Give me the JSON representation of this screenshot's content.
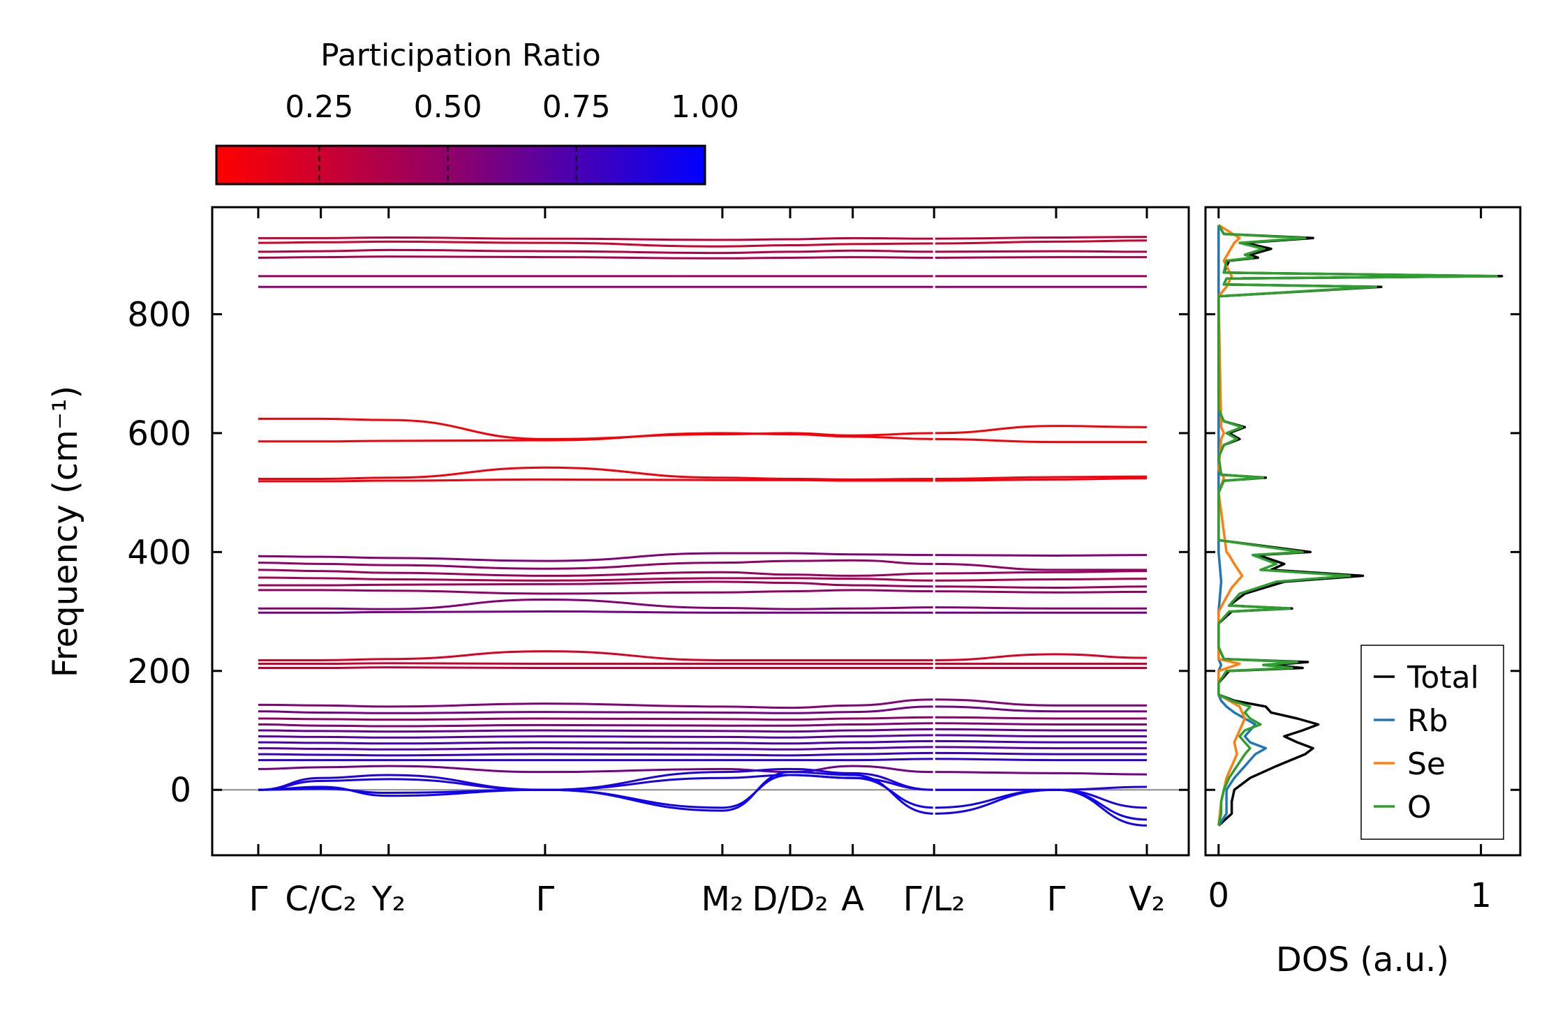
{
  "colors": {
    "cmap_low": "#ff0000",
    "cmap_mid": "#8a006e",
    "cmap_high": "#0000ff",
    "axes": "#000000",
    "zero_line": "#888888",
    "total": "#000000",
    "rb": "#1f77b4",
    "se": "#ff7f0e",
    "o": "#2ca02c"
  },
  "colorbar": {
    "label": "Participation Ratio",
    "range": [
      0.05,
      1.0
    ],
    "ticks": [
      "0.25",
      "0.50",
      "0.75",
      "1.00"
    ],
    "tick_values": [
      0.25,
      0.5,
      0.75,
      1.0
    ]
  },
  "chart_data": [
    {
      "type": "line",
      "title": "",
      "xlabel": "",
      "ylabel": "Frequency (cm⁻¹)",
      "ylim": [
        -110,
        980
      ],
      "ytick_labels": [
        "0",
        "200",
        "400",
        "600",
        "800"
      ],
      "ytick_values": [
        0,
        200,
        400,
        600,
        800
      ],
      "zero_line": 0,
      "kpath_labels": [
        "Γ",
        "C/C₂",
        "Y₂",
        "Γ",
        "M₂",
        "D/D₂",
        "A",
        "Γ/L₂",
        "Γ",
        "V₂"
      ],
      "kpath_positions": [
        0,
        0.6,
        1.25,
        2.75,
        4.45,
        5.1,
        5.7,
        6.48,
        7.65,
        8.52
      ],
      "kpath_segment_breaks": [
        6.48
      ],
      "bands": [
        {
          "pr": 0.3,
          "freqs": [
            928,
            928,
            929,
            927,
            925,
            926,
            928,
            927,
            929,
            930
          ]
        },
        {
          "pr": 0.25,
          "freqs": [
            920,
            921,
            922,
            920,
            914,
            916,
            918,
            919,
            922,
            924
          ]
        },
        {
          "pr": 0.35,
          "freqs": [
            905,
            906,
            908,
            906,
            903,
            905,
            907,
            905,
            906,
            905
          ]
        },
        {
          "pr": 0.4,
          "freqs": [
            895,
            896,
            897,
            896,
            894,
            895,
            896,
            895,
            896,
            896
          ]
        },
        {
          "pr": 0.45,
          "freqs": [
            864,
            864,
            864,
            864,
            864,
            864,
            864,
            864,
            864,
            864
          ]
        },
        {
          "pr": 0.5,
          "freqs": [
            846,
            846,
            846,
            846,
            846,
            846,
            846,
            846,
            846,
            846
          ]
        },
        {
          "pr": 0.08,
          "freqs": [
            624,
            624,
            622,
            590,
            598,
            600,
            596,
            600,
            612,
            610
          ]
        },
        {
          "pr": 0.08,
          "freqs": [
            586,
            586,
            587,
            588,
            600,
            598,
            594,
            590,
            585,
            585
          ]
        },
        {
          "pr": 0.1,
          "freqs": [
            523,
            523,
            525,
            542,
            525,
            523,
            522,
            523,
            526,
            527
          ]
        },
        {
          "pr": 0.1,
          "freqs": [
            519,
            519,
            520,
            522,
            521,
            521,
            520,
            520,
            522,
            524
          ]
        },
        {
          "pr": 0.55,
          "freqs": [
            393,
            392,
            390,
            385,
            398,
            398,
            396,
            395,
            394,
            395
          ]
        },
        {
          "pr": 0.5,
          "freqs": [
            382,
            380,
            378,
            372,
            382,
            385,
            386,
            380,
            370,
            370
          ]
        },
        {
          "pr": 0.45,
          "freqs": [
            370,
            368,
            365,
            360,
            366,
            362,
            360,
            364,
            366,
            368
          ]
        },
        {
          "pr": 0.4,
          "freqs": [
            357,
            356,
            354,
            352,
            356,
            356,
            355,
            352,
            354,
            355
          ]
        },
        {
          "pr": 0.45,
          "freqs": [
            344,
            344,
            345,
            346,
            350,
            348,
            344,
            342,
            340,
            342
          ]
        },
        {
          "pr": 0.5,
          "freqs": [
            336,
            336,
            335,
            330,
            332,
            334,
            336,
            334,
            332,
            333
          ]
        },
        {
          "pr": 0.55,
          "freqs": [
            305,
            305,
            304,
            320,
            306,
            304,
            305,
            307,
            305,
            305
          ]
        },
        {
          "pr": 0.6,
          "freqs": [
            298,
            298,
            299,
            300,
            298,
            298,
            298,
            298,
            298,
            298
          ]
        },
        {
          "pr": 0.2,
          "freqs": [
            218,
            218,
            220,
            233,
            218,
            218,
            218,
            218,
            228,
            222
          ]
        },
        {
          "pr": 0.25,
          "freqs": [
            212,
            212,
            213,
            212,
            212,
            212,
            212,
            212,
            212,
            212
          ]
        },
        {
          "pr": 0.3,
          "freqs": [
            205,
            205,
            206,
            205,
            205,
            205,
            205,
            205,
            205,
            205
          ]
        },
        {
          "pr": 0.55,
          "freqs": [
            143,
            142,
            140,
            145,
            140,
            138,
            142,
            152,
            142,
            142
          ]
        },
        {
          "pr": 0.6,
          "freqs": [
            132,
            130,
            129,
            131,
            130,
            129,
            131,
            140,
            132,
            132
          ]
        },
        {
          "pr": 0.5,
          "freqs": [
            120,
            119,
            118,
            120,
            119,
            118,
            120,
            122,
            120,
            120
          ]
        },
        {
          "pr": 0.55,
          "freqs": [
            110,
            108,
            107,
            109,
            108,
            108,
            110,
            112,
            110,
            110
          ]
        },
        {
          "pr": 0.65,
          "freqs": [
            100,
            99,
            98,
            100,
            99,
            98,
            100,
            102,
            100,
            100
          ]
        },
        {
          "pr": 0.7,
          "freqs": [
            90,
            89,
            88,
            90,
            89,
            88,
            90,
            92,
            90,
            90
          ]
        },
        {
          "pr": 0.75,
          "freqs": [
            80,
            79,
            78,
            80,
            79,
            78,
            80,
            82,
            80,
            80
          ]
        },
        {
          "pr": 0.7,
          "freqs": [
            70,
            69,
            68,
            70,
            69,
            68,
            70,
            72,
            70,
            70
          ]
        },
        {
          "pr": 0.8,
          "freqs": [
            60,
            59,
            58,
            60,
            59,
            58,
            60,
            62,
            60,
            60
          ]
        },
        {
          "pr": 0.85,
          "freqs": [
            50,
            50,
            50,
            50,
            50,
            50,
            50,
            52,
            50,
            50
          ]
        },
        {
          "pr": 0.6,
          "freqs": [
            35,
            38,
            40,
            30,
            35,
            30,
            40,
            30,
            28,
            26
          ]
        },
        {
          "pr": 0.9,
          "freqs": [
            0,
            20,
            25,
            0,
            30,
            35,
            28,
            0,
            0,
            5
          ]
        },
        {
          "pr": 0.92,
          "freqs": [
            0,
            15,
            18,
            0,
            20,
            25,
            20,
            0,
            0,
            -30
          ]
        },
        {
          "pr": 0.95,
          "freqs": [
            0,
            5,
            -10,
            0,
            -35,
            30,
            25,
            -40,
            0,
            -50
          ]
        },
        {
          "pr": 0.95,
          "freqs": [
            0,
            2,
            -5,
            0,
            -30,
            25,
            20,
            -30,
            0,
            -60
          ]
        }
      ]
    },
    {
      "type": "line",
      "title": "",
      "xlabel": "DOS (a.u.)",
      "ylabel": "",
      "xlim": [
        -0.05,
        1.15
      ],
      "ylim": [
        -110,
        980
      ],
      "xtick_labels": [
        "0",
        "1"
      ],
      "xtick_values": [
        0,
        1
      ],
      "legend_position": "lower-right",
      "series": [
        {
          "name": "Total",
          "color_key": "total",
          "freq": [
            -60,
            -40,
            -20,
            0,
            20,
            40,
            60,
            70,
            80,
            90,
            100,
            110,
            120,
            130,
            140,
            150,
            160,
            180,
            200,
            205,
            210,
            215,
            220,
            240,
            280,
            300,
            305,
            310,
            330,
            350,
            360,
            370,
            380,
            395,
            400,
            420,
            500,
            520,
            525,
            530,
            560,
            580,
            590,
            600,
            610,
            620,
            640,
            830,
            846,
            850,
            860,
            864,
            870,
            890,
            895,
            900,
            910,
            920,
            928,
            935,
            950
          ],
          "dos": [
            0,
            0.05,
            0.05,
            0.06,
            0.12,
            0.22,
            0.33,
            0.36,
            0.3,
            0.25,
            0.32,
            0.38,
            0.3,
            0.2,
            0.18,
            0.06,
            0,
            0,
            0.04,
            0.32,
            0.2,
            0.34,
            0.02,
            0,
            0,
            0.05,
            0.28,
            0.04,
            0.1,
            0.25,
            0.55,
            0.2,
            0.25,
            0.15,
            0.35,
            0,
            0,
            0.02,
            0.18,
            0.01,
            0,
            0.02,
            0.08,
            0.04,
            0.1,
            0.02,
            0,
            0,
            0.62,
            0.02,
            0.03,
            1.08,
            0.02,
            0.04,
            0.15,
            0.12,
            0.2,
            0.1,
            0.36,
            0.02,
            0
          ]
        },
        {
          "name": "Rb",
          "color_key": "rb",
          "freq": [
            -60,
            -40,
            -20,
            0,
            20,
            40,
            60,
            70,
            80,
            90,
            100,
            110,
            120,
            130,
            140,
            150,
            160,
            200,
            210,
            220,
            300,
            350,
            400,
            600,
            900,
            950
          ],
          "dos": [
            0,
            0.03,
            0.03,
            0.03,
            0.06,
            0.1,
            0.14,
            0.18,
            0.12,
            0.1,
            0.12,
            0.14,
            0.1,
            0.06,
            0.03,
            0.01,
            0,
            0,
            0.01,
            0,
            0,
            0.01,
            0,
            0,
            0,
            0
          ]
        },
        {
          "name": "Se",
          "color_key": "se",
          "freq": [
            -60,
            -20,
            0,
            20,
            40,
            60,
            80,
            100,
            120,
            140,
            150,
            160,
            200,
            212,
            220,
            300,
            340,
            360,
            380,
            395,
            400,
            500,
            525,
            540,
            590,
            600,
            610,
            830,
            846,
            864,
            890,
            905,
            920,
            928,
            950
          ],
          "dos": [
            0,
            0.01,
            0.02,
            0.03,
            0.05,
            0.07,
            0.06,
            0.08,
            0.1,
            0.08,
            0.04,
            0,
            0,
            0.08,
            0,
            0,
            0.05,
            0.09,
            0.06,
            0.04,
            0.03,
            0,
            0.02,
            0,
            0.01,
            0.02,
            0.01,
            0,
            0.03,
            0.05,
            0.02,
            0.04,
            0.06,
            0.08,
            0
          ]
        },
        {
          "name": "O",
          "color_key": "o",
          "freq": [
            -60,
            -40,
            -20,
            0,
            20,
            40,
            60,
            70,
            80,
            90,
            100,
            110,
            120,
            130,
            140,
            150,
            160,
            180,
            200,
            205,
            210,
            215,
            220,
            240,
            280,
            300,
            305,
            310,
            330,
            350,
            360,
            370,
            380,
            395,
            400,
            420,
            500,
            520,
            525,
            530,
            560,
            580,
            590,
            600,
            610,
            620,
            640,
            830,
            846,
            850,
            860,
            864,
            870,
            890,
            895,
            900,
            910,
            920,
            928,
            935,
            950
          ],
          "dos": [
            0,
            0.01,
            0.01,
            0.02,
            0.04,
            0.07,
            0.1,
            0.12,
            0.1,
            0.08,
            0.1,
            0.16,
            0.12,
            0.1,
            0.12,
            0.05,
            0,
            0,
            0.03,
            0.28,
            0.17,
            0.3,
            0.02,
            0,
            0,
            0.04,
            0.27,
            0.04,
            0.08,
            0.22,
            0.5,
            0.16,
            0.22,
            0.13,
            0.32,
            0,
            0,
            0.02,
            0.17,
            0.01,
            0,
            0.02,
            0.07,
            0.03,
            0.09,
            0.02,
            0,
            0,
            0.6,
            0.02,
            0.03,
            1.06,
            0.02,
            0.03,
            0.13,
            0.1,
            0.17,
            0.08,
            0.33,
            0.02,
            0
          ]
        }
      ]
    }
  ]
}
